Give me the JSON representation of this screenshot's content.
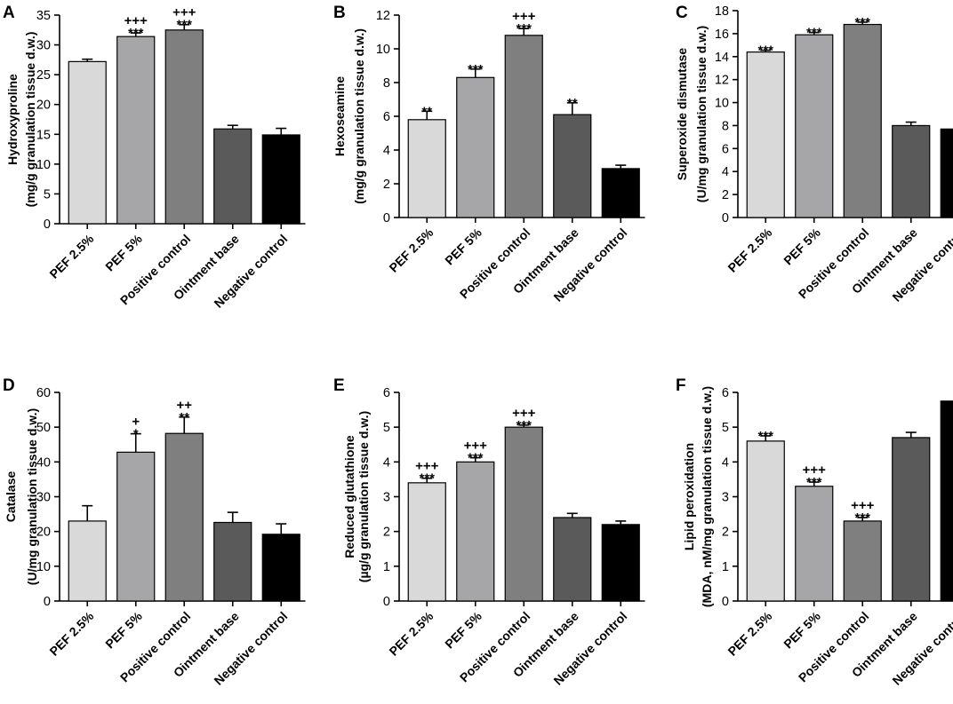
{
  "chart_data": [
    {
      "panel": "A",
      "type": "bar",
      "categories": [
        "PEF 2.5%",
        "PEF 5%",
        "Positive control",
        "Ointment base",
        "Negative control"
      ],
      "values": [
        27.2,
        31.4,
        32.5,
        15.9,
        14.9
      ],
      "errors": [
        0.4,
        0.6,
        0.9,
        0.6,
        1.1
      ],
      "colors": [
        "#d9d9d9",
        "#a6a6a8",
        "#7f7f7f",
        "#5a5a5a",
        "#000000"
      ],
      "sig_top": [
        "",
        "+++",
        "+++",
        "",
        ""
      ],
      "sig_bottom": [
        "",
        "***",
        "***",
        "",
        ""
      ],
      "ylabel": [
        "Hydroxyproline",
        "(mg/g granulation tissue d.w.)"
      ],
      "ylim": [
        0,
        35
      ],
      "yticks": [
        0,
        5,
        10,
        15,
        20,
        25,
        30,
        35
      ]
    },
    {
      "panel": "B",
      "type": "bar",
      "categories": [
        "PEF 2.5%",
        "PEF 5%",
        "Positive control",
        "Ointment base",
        "Negative control"
      ],
      "values": [
        5.8,
        8.3,
        10.8,
        6.1,
        2.9
      ],
      "errors": [
        0.5,
        0.5,
        0.4,
        0.7,
        0.2
      ],
      "colors": [
        "#d9d9d9",
        "#a6a6a8",
        "#7f7f7f",
        "#5a5a5a",
        "#000000"
      ],
      "sig_top": [
        "",
        "",
        "+++",
        "",
        ""
      ],
      "sig_bottom": [
        "**",
        "***",
        "***",
        "**",
        ""
      ],
      "ylabel": [
        "Hexoseamine",
        "(mg/g granulation tissue d.w.)"
      ],
      "ylim": [
        0,
        12
      ],
      "yticks": [
        0,
        2,
        4,
        6,
        8,
        10,
        12
      ]
    },
    {
      "panel": "C",
      "type": "bar",
      "categories": [
        "PEF 2.5%",
        "PEF 5%",
        "Positive control",
        "Ointment base",
        "Negative control"
      ],
      "values": [
        14.4,
        15.9,
        16.8,
        8.0,
        7.7
      ],
      "errors": [
        0.15,
        0.2,
        0.2,
        0.3,
        0.2
      ],
      "colors": [
        "#d9d9d9",
        "#a6a6a8",
        "#7f7f7f",
        "#5a5a5a",
        "#000000"
      ],
      "sig_top": [
        "",
        "",
        "",
        "",
        ""
      ],
      "sig_bottom": [
        "***",
        "***",
        "***",
        "",
        ""
      ],
      "ylabel": [
        "Superoxide dismutase",
        "(U/mg granulation tissue d.w.)"
      ],
      "ylim": [
        0,
        18
      ],
      "yticks": [
        0,
        2,
        4,
        6,
        8,
        10,
        12,
        14,
        16,
        18
      ]
    },
    {
      "panel": "D",
      "type": "bar",
      "categories": [
        "PEF 2.5%",
        "PEF 5%",
        "Positive control",
        "Ointment base",
        "Negative control"
      ],
      "values": [
        23.0,
        42.8,
        48.2,
        22.6,
        19.2
      ],
      "errors": [
        4.4,
        5.3,
        4.7,
        2.9,
        3.0
      ],
      "colors": [
        "#d9d9d9",
        "#a6a6a8",
        "#7f7f7f",
        "#5a5a5a",
        "#000000"
      ],
      "sig_top": [
        "",
        "+",
        "++",
        "",
        ""
      ],
      "sig_bottom": [
        "",
        "*",
        "**",
        "",
        ""
      ],
      "ylabel": [
        "Catalase",
        "(U/mg granulation tissue d.w.)"
      ],
      "ylim": [
        0,
        60
      ],
      "yticks": [
        0,
        10,
        20,
        30,
        40,
        50,
        60
      ]
    },
    {
      "panel": "E",
      "type": "bar",
      "categories": [
        "PEF 2.5%",
        "PEF 5%",
        "Positive control",
        "Ointment base",
        "Negative control"
      ],
      "values": [
        3.4,
        4.0,
        5.0,
        2.4,
        2.2
      ],
      "errors": [
        0.13,
        0.12,
        0.06,
        0.12,
        0.1
      ],
      "colors": [
        "#d9d9d9",
        "#a6a6a8",
        "#7f7f7f",
        "#5a5a5a",
        "#000000"
      ],
      "sig_top": [
        "+++",
        "+++",
        "+++",
        "",
        ""
      ],
      "sig_bottom": [
        "***",
        "***",
        "***",
        "",
        ""
      ],
      "ylabel": [
        "Reduced glutathione",
        "(µg/g granulation tissue d.w.)"
      ],
      "ylim": [
        0,
        6
      ],
      "yticks": [
        0,
        1,
        2,
        3,
        4,
        5,
        6
      ]
    },
    {
      "panel": "F",
      "type": "bar",
      "categories": [
        "PEF 2.5%",
        "PEF 5%",
        "Positive control",
        "Ointment base",
        "Negative control"
      ],
      "values": [
        4.6,
        3.3,
        2.3,
        4.7,
        5.75
      ],
      "errors": [
        0.15,
        0.12,
        0.1,
        0.15,
        0.13
      ],
      "colors": [
        "#d9d9d9",
        "#a6a6a8",
        "#7f7f7f",
        "#5a5a5a",
        "#000000"
      ],
      "sig_top": [
        "",
        "+++",
        "+++",
        "",
        ""
      ],
      "sig_bottom": [
        "***",
        "***",
        "***",
        "",
        ""
      ],
      "ylabel": [
        "Lipid peroxidation",
        "(MDA, nM/mg granulation tissue d.w.)"
      ],
      "ylim": [
        0,
        6
      ],
      "yticks": [
        0,
        1,
        2,
        3,
        4,
        5,
        6
      ]
    }
  ]
}
